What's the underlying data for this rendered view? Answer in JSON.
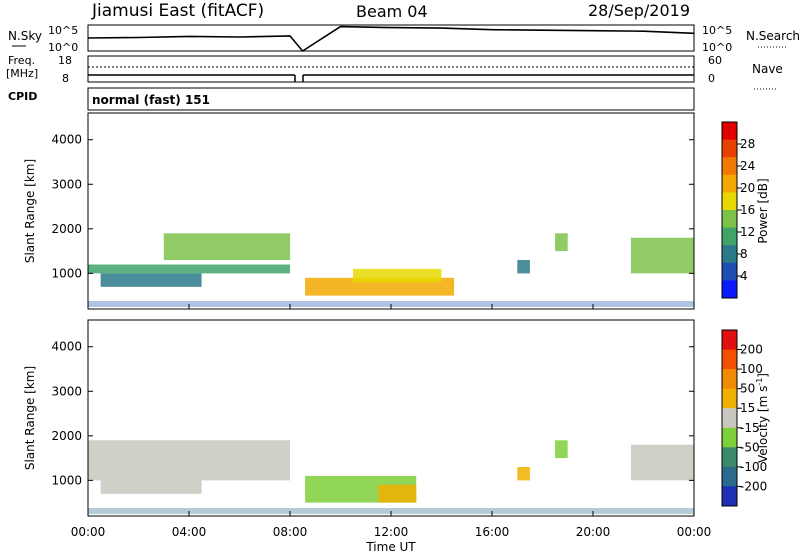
{
  "header": {
    "title": "Jiamusi East (fitACF)",
    "beam": "Beam 04",
    "date": "28/Sep/2019"
  },
  "top_panels": {
    "nsky_label": "N.Sky",
    "nsearch_label": "N.Search",
    "freq_label_1": "Freq.",
    "freq_label_2": "[MHz]",
    "nave_label": "Nave",
    "cpid_label": "CPID",
    "cpid_value": "normal (fast) 151",
    "noise_ticks_left": [
      "10^5",
      "10^0"
    ],
    "noise_ticks_right": [
      "10^5",
      "10^0"
    ],
    "freq_ticks": [
      "18",
      "8"
    ],
    "nave_ticks": [
      "60",
      "0"
    ]
  },
  "colorbars": {
    "power": {
      "label": "Power [dB]",
      "ticks": [
        "28",
        "24",
        "20",
        "16",
        "12",
        "8",
        "4"
      ],
      "colors": [
        "#0a1aff",
        "#1e4db3",
        "#2a7a8a",
        "#3fa36a",
        "#7cc24a",
        "#e8d800",
        "#f2a800",
        "#f07a00",
        "#e84000",
        "#e00000"
      ]
    },
    "velocity": {
      "label": "Velocity [m s",
      "label_sup": "-1",
      "label_end": "]",
      "ticks": [
        "200",
        "100",
        "50",
        "15",
        "-15",
        "-50",
        "-100",
        "-200"
      ],
      "colors": [
        "#1e2fb4",
        "#2a6a8c",
        "#3a8a6a",
        "#7ecf3a",
        "#c8c8c0",
        "#f0b000",
        "#f08a00",
        "#f05000",
        "#e01010"
      ]
    }
  },
  "chart_data": [
    {
      "type": "line",
      "title": "N.Sky / N.Search",
      "x": [
        "00:00",
        "02:00",
        "04:00",
        "06:00",
        "08:00",
        "08:30",
        "10:00",
        "12:00",
        "14:00",
        "16:00",
        "18:00",
        "20:00",
        "22:00",
        "24:00"
      ],
      "series": [
        {
          "name": "N.Sky",
          "values": [
            2.5,
            2.6,
            2.8,
            2.7,
            2.9,
            0,
            4.7,
            4.5,
            4.4,
            4.1,
            4.0,
            3.9,
            3.8,
            3.4
          ]
        }
      ],
      "ylim": [
        0,
        5
      ]
    },
    {
      "type": "heatmap",
      "title": "Power [dB]",
      "xlabel": "Time UT",
      "ylabel": "Slant Range [km]",
      "x_ticks": [
        "00:00",
        "04:00",
        "08:00",
        "12:00",
        "16:00",
        "20:00",
        "00:00"
      ],
      "y_ticks": [
        1000,
        2000,
        3000,
        4000
      ],
      "xlim": [
        0,
        24
      ],
      "ylim": [
        200,
        4600
      ],
      "regions": [
        {
          "t0": 0.0,
          "t1": 8.0,
          "r0": 1000,
          "r1": 1200,
          "level": 3
        },
        {
          "t0": 3.0,
          "t1": 8.0,
          "r0": 1300,
          "r1": 1900,
          "level": 4
        },
        {
          "t0": 0.5,
          "t1": 4.5,
          "r0": 700,
          "r1": 1000,
          "level": 2
        },
        {
          "t0": 8.6,
          "t1": 14.5,
          "r0": 500,
          "r1": 900,
          "level": 6
        },
        {
          "t0": 10.5,
          "t1": 14.0,
          "r0": 800,
          "r1": 1100,
          "level": 5
        },
        {
          "t0": 17.0,
          "t1": 17.5,
          "r0": 1000,
          "r1": 1300,
          "level": 2
        },
        {
          "t0": 18.5,
          "t1": 19.0,
          "r0": 1500,
          "r1": 1900,
          "level": 4
        },
        {
          "t0": 21.5,
          "t1": 24.0,
          "r0": 1000,
          "r1": 1800,
          "level": 4
        }
      ]
    },
    {
      "type": "heatmap",
      "title": "Velocity [m s-1]",
      "xlabel": "Time UT",
      "ylabel": "Slant Range [km]",
      "x_ticks": [
        "00:00",
        "04:00",
        "08:00",
        "12:00",
        "16:00",
        "20:00",
        "00:00"
      ],
      "y_ticks": [
        1000,
        2000,
        3000,
        4000
      ],
      "xlim": [
        0,
        24
      ],
      "ylim": [
        200,
        4600
      ],
      "regions": [
        {
          "t0": 0.0,
          "t1": 8.0,
          "r0": 1000,
          "r1": 1900,
          "level": 4
        },
        {
          "t0": 0.5,
          "t1": 4.5,
          "r0": 700,
          "r1": 1000,
          "level": 4
        },
        {
          "t0": 8.6,
          "t1": 13.0,
          "r0": 500,
          "r1": 1100,
          "level": 3
        },
        {
          "t0": 11.5,
          "t1": 13.0,
          "r0": 500,
          "r1": 900,
          "level": 5
        },
        {
          "t0": 17.0,
          "t1": 17.5,
          "r0": 1000,
          "r1": 1300,
          "level": 5
        },
        {
          "t0": 18.5,
          "t1": 19.0,
          "r0": 1500,
          "r1": 1900,
          "level": 3
        },
        {
          "t0": 21.5,
          "t1": 24.0,
          "r0": 1000,
          "r1": 1800,
          "level": 4
        }
      ]
    }
  ]
}
